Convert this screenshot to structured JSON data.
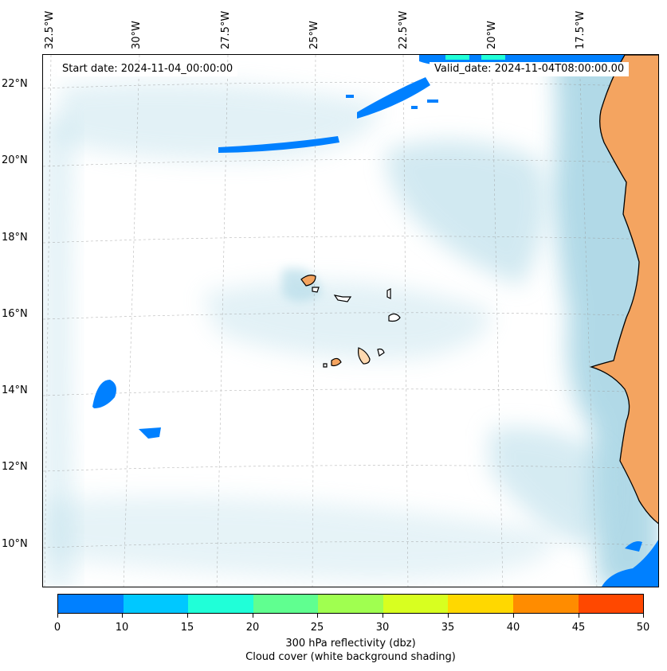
{
  "map": {
    "start_date": "Start date: 2024-11-04_00:00:00",
    "valid_date": "Valid_date: 2024-11-04T08:00:00.00",
    "lon_labels": [
      "32.5°W",
      "30°W",
      "27.5°W",
      "25°W",
      "22.5°W",
      "20°W",
      "17.5°W"
    ],
    "lat_labels": [
      "22°N",
      "20°N",
      "18°N",
      "16°N",
      "14°N",
      "12°N",
      "10°N"
    ],
    "land_color": "#f4a460",
    "cloud_color": "#add8e6",
    "ocean_color": "#ffffff"
  },
  "colorbar": {
    "ticks": [
      "0",
      "10",
      "15",
      "20",
      "25",
      "30",
      "35",
      "40",
      "45",
      "50"
    ],
    "colors": [
      "#0080ff",
      "#00c8ff",
      "#20ffd8",
      "#60ff90",
      "#a0ff50",
      "#d8ff20",
      "#ffd800",
      "#ff8c00",
      "#ff4800"
    ],
    "label_line1": "300 hPa reflectivity (dbz)",
    "label_line2": "Cloud cover (white background shading)"
  }
}
